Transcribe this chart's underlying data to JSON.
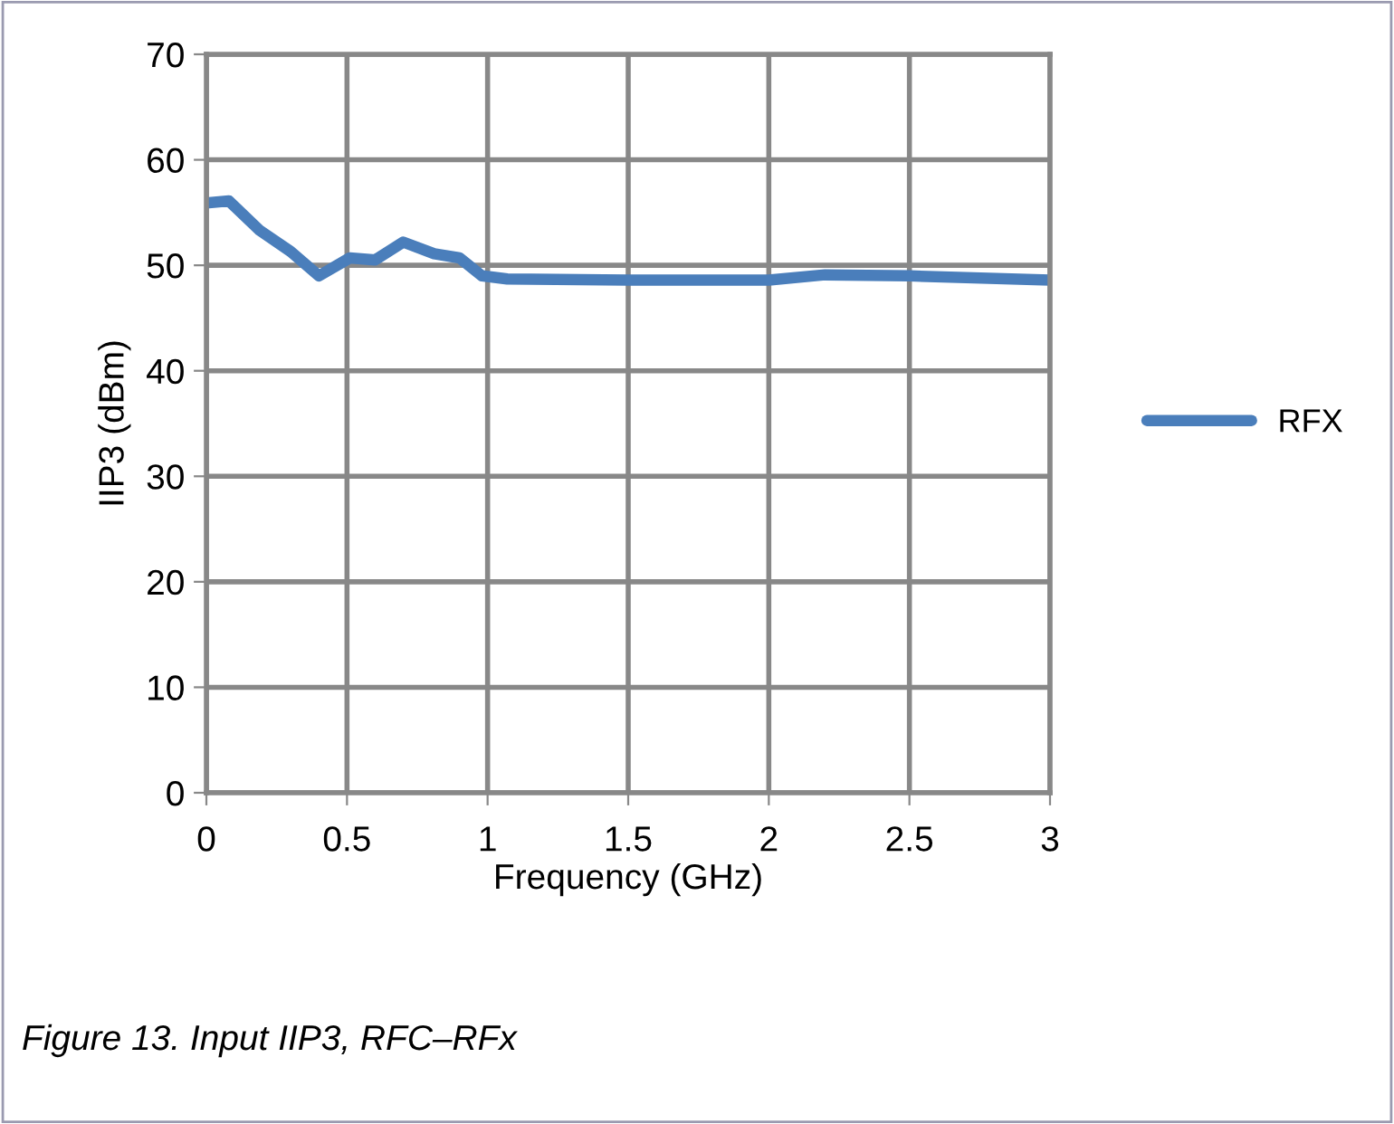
{
  "chart_data": {
    "type": "line",
    "xlabel": "Frequency (GHz)",
    "ylabel": "IIP3 (dBm)",
    "annotations": [
      "Figure 13. Input IIP3, RFC–RFx"
    ],
    "x": [
      0,
      0.08,
      0.19,
      0.3,
      0.4,
      0.51,
      0.6,
      0.7,
      0.81,
      0.9,
      0.98,
      1.07,
      1.5,
      2,
      2.2,
      2.5,
      3
    ],
    "series": [
      {
        "name": "RFX",
        "color": "#4a7ebb",
        "values": [
          55.9,
          56.1,
          53.3,
          51.3,
          49.0,
          50.7,
          50.5,
          52.2,
          51.1,
          50.7,
          49.0,
          48.7,
          48.6,
          48.6,
          49.1,
          49.0,
          48.6
        ]
      }
    ],
    "xlim": [
      0,
      3
    ],
    "xticks": [
      0,
      0.5,
      1,
      1.5,
      2,
      2.5,
      3
    ],
    "ylim": [
      0,
      70
    ],
    "yticks": [
      0,
      10,
      20,
      30,
      40,
      50,
      60,
      70
    ],
    "grid": true,
    "legend": "right",
    "marker": "none",
    "line_style": "solid"
  }
}
